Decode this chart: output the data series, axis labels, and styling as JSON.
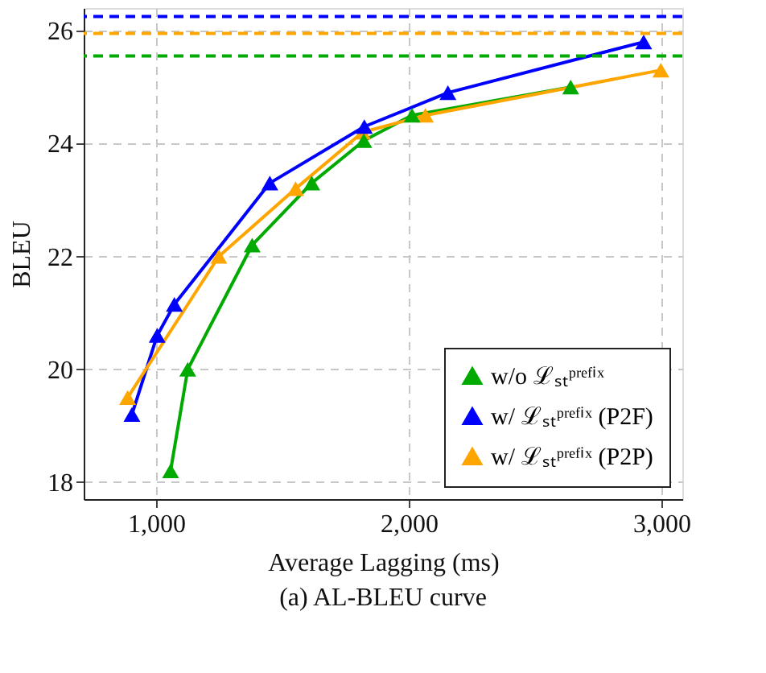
{
  "chart_data": {
    "type": "line",
    "xlabel": "Average Lagging (ms)",
    "ylabel": "BLEU",
    "annotations": [
      "(a)  AL-BLEU curve"
    ],
    "xlim": [
      713,
      3083
    ],
    "ylim": [
      17.7,
      26.4
    ],
    "xticks": [
      {
        "value": 1000,
        "label": "1,000"
      },
      {
        "value": 2000,
        "label": "2,000"
      },
      {
        "value": 3000,
        "label": "3,000"
      }
    ],
    "yticks": [
      18,
      20,
      22,
      24,
      26
    ],
    "grid": true,
    "legend": "bottom right",
    "marker": "triangle",
    "line_style": "solid",
    "series": [
      {
        "name": "w/o ℒₛₜᵖʳᵉᶠⁱˣ",
        "color": "#00aa00",
        "x": [
          1057,
          1125,
          1380,
          1616,
          1822,
          2013,
          2641
        ],
        "values": [
          18.2,
          20.0,
          22.2,
          23.3,
          24.05,
          24.5,
          25.0
        ]
      },
      {
        "name": "w/ ℒₛₜᵖʳᵉᶠⁱˣ (P2F)",
        "color": "#0000ff",
        "x": [
          904,
          1004,
          1072,
          1450,
          1824,
          2155,
          2930
        ],
        "values": [
          19.2,
          20.6,
          21.15,
          23.3,
          24.3,
          24.9,
          25.8
        ]
      },
      {
        "name": "w/ ℒₛₜᵖʳᵉᶠⁱˣ (P2P)",
        "color": "#ffa500",
        "x": [
          887,
          1248,
          1552,
          1817,
          2066,
          2998
        ],
        "values": [
          19.5,
          22.0,
          23.2,
          24.2,
          24.5,
          25.3
        ]
      }
    ],
    "ref_lines": [
      {
        "axis": "y",
        "value": 26.25,
        "color": "#0000ff",
        "line_style": "dashed"
      },
      {
        "axis": "y",
        "value": 25.95,
        "color": "#ffa500",
        "line_style": "dashed"
      },
      {
        "axis": "y",
        "value": 25.55,
        "color": "#00aa00",
        "line_style": "dashed"
      }
    ]
  }
}
